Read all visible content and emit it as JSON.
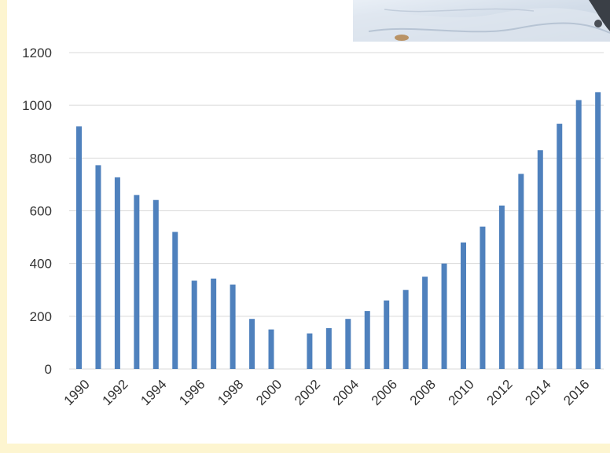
{
  "chart_data": {
    "type": "bar",
    "title": "",
    "xlabel": "",
    "ylabel": "",
    "ylim": [
      0,
      1200
    ],
    "yticks": [
      0,
      200,
      400,
      600,
      800,
      1000,
      1200
    ],
    "grid": true,
    "legend": "none",
    "color": "#4f81bd",
    "categories": [
      "1990",
      "1991",
      "1992",
      "1993",
      "1994",
      "1995",
      "1996",
      "1997",
      "1998",
      "1999",
      "2000",
      "2001",
      "2002",
      "2003",
      "2004",
      "2005",
      "2006",
      "2007",
      "2008",
      "2009",
      "2010",
      "2011",
      "2012",
      "2013",
      "2014",
      "2015",
      "2016",
      "2017"
    ],
    "xtick_labels": [
      "1990",
      "1992",
      "1994",
      "1996",
      "1998",
      "2000",
      "2002",
      "2004",
      "2006",
      "2008",
      "2010",
      "2012",
      "2014",
      "2016"
    ],
    "values": [
      920,
      773,
      727,
      660,
      641,
      520,
      335,
      343,
      320,
      190,
      150,
      null,
      135,
      155,
      190,
      220,
      260,
      300,
      350,
      400,
      480,
      540,
      620,
      740,
      830,
      930,
      1020,
      1050
    ]
  },
  "photo": {
    "icon": "snow-landscape-photo"
  }
}
